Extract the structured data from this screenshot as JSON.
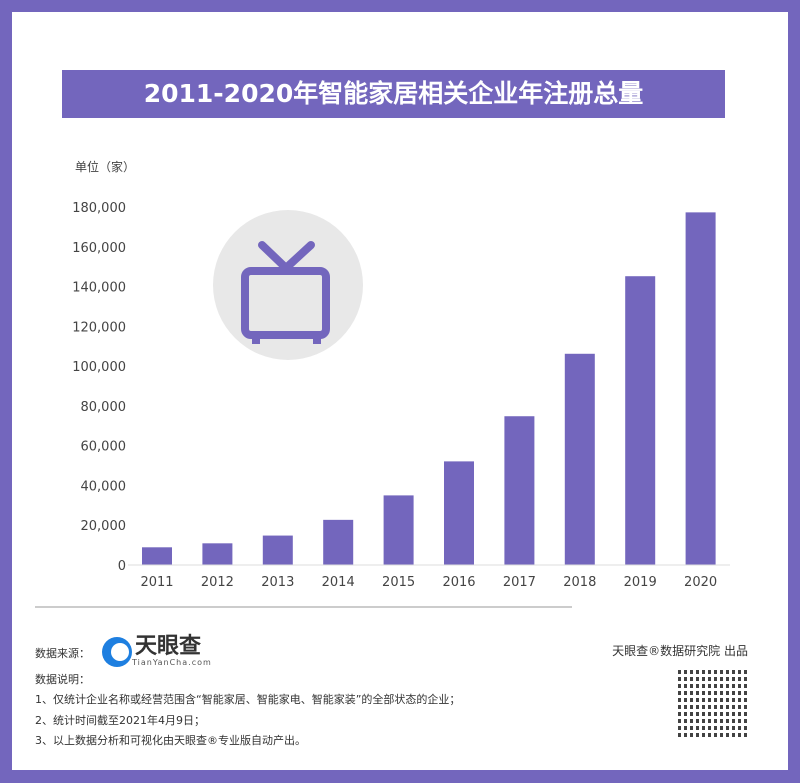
{
  "title": "2011-2020年智能家居相关企业年注册总量",
  "chart_data": {
    "type": "bar",
    "title": "2011-2020年智能家居相关企业年注册总量",
    "unit_label": "单位（家）",
    "categories": [
      "2011",
      "2012",
      "2013",
      "2014",
      "2015",
      "2016",
      "2017",
      "2018",
      "2019",
      "2020"
    ],
    "values": [
      8900,
      10900,
      14800,
      22700,
      35000,
      52100,
      74800,
      106200,
      145200,
      177300
    ],
    "yticks": [
      "0",
      "20,000",
      "40,000",
      "60,000",
      "80,000",
      "100,000",
      "120,000",
      "140,000",
      "160,000",
      "180,000"
    ],
    "ylim": [
      0,
      180000
    ],
    "grid": false,
    "bar_color": "#7366bd"
  },
  "icon": "tv-icon",
  "watermark": "天眼查",
  "footer": {
    "source_label": "数据来源：",
    "logo_text": "天眼查",
    "logo_url_text": "TianYanCha.com",
    "notes_label": "数据说明：",
    "notes": [
      "1、仅统计企业名称或经营范围含“智能家居、智能家电、智能家装”的全部状态的企业；",
      "2、统计时间截至2021年4月9日；",
      "3、以上数据分析和可视化由天眼查®专业版自动产出。"
    ],
    "credit": "天眼查®数据研究院 出品"
  }
}
